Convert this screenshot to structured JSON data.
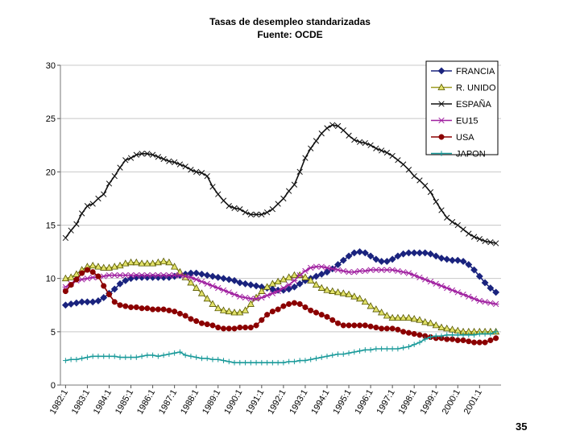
{
  "chart_data": {
    "type": "line",
    "title": "Tasas de desempleo standarizadas",
    "subtitle": "Fuente: OCDE",
    "xlabel": "",
    "ylabel": "",
    "ylim": [
      0,
      30
    ],
    "yticks": [
      0,
      5,
      10,
      15,
      20,
      25,
      30
    ],
    "grid": "horizontal",
    "legend_position": "top-right",
    "x_tick_labels": [
      "1982:1",
      "1983:1",
      "1984:1",
      "1985:1",
      "1986:1",
      "1987:1",
      "1988:1",
      "1989:1",
      "1990:1",
      "1991:1",
      "1992:1",
      "1993:1",
      "1994:1",
      "1995:1",
      "1996:1",
      "1997:1",
      "1998:1",
      "1999:1",
      "2000:1",
      "2001:1"
    ],
    "x_note": "Quarterly observations from 1982:1 to 2001:4 (80 points); values listed per quarter.",
    "series": [
      {
        "name": "FRANCIA",
        "color": "#1a237e",
        "marker": "diamond",
        "values": [
          7.5,
          7.6,
          7.7,
          7.8,
          7.8,
          7.8,
          7.9,
          8.2,
          8.6,
          9.0,
          9.5,
          9.8,
          10.0,
          10.1,
          10.1,
          10.1,
          10.1,
          10.1,
          10.1,
          10.1,
          10.2,
          10.3,
          10.4,
          10.5,
          10.5,
          10.4,
          10.3,
          10.2,
          10.1,
          10.0,
          9.9,
          9.8,
          9.6,
          9.5,
          9.4,
          9.3,
          9.2,
          9.1,
          9.0,
          8.9,
          8.9,
          9.0,
          9.2,
          9.5,
          9.8,
          10.0,
          10.2,
          10.4,
          10.6,
          10.9,
          11.3,
          11.7,
          12.1,
          12.4,
          12.5,
          12.4,
          12.1,
          11.8,
          11.6,
          11.6,
          11.8,
          12.1,
          12.3,
          12.4,
          12.4,
          12.4,
          12.4,
          12.3,
          12.1,
          11.9,
          11.8,
          11.7,
          11.7,
          11.6,
          11.3,
          10.8,
          10.2,
          9.6,
          9.1,
          8.7
        ]
      },
      {
        "name": "R. UNIDO",
        "color": "#9e9d24",
        "marker": "triangle",
        "values": [
          10.0,
          10.1,
          10.4,
          10.8,
          11.1,
          11.2,
          11.1,
          11.0,
          11.0,
          11.1,
          11.2,
          11.4,
          11.5,
          11.5,
          11.4,
          11.4,
          11.4,
          11.5,
          11.6,
          11.5,
          11.1,
          10.6,
          10.1,
          9.6,
          9.1,
          8.6,
          8.1,
          7.6,
          7.2,
          7.0,
          6.9,
          6.8,
          6.8,
          7.0,
          7.6,
          8.2,
          8.8,
          9.2,
          9.5,
          9.7,
          9.9,
          10.1,
          10.3,
          10.3,
          10.1,
          9.8,
          9.4,
          9.1,
          8.9,
          8.8,
          8.7,
          8.6,
          8.5,
          8.3,
          8.1,
          7.8,
          7.4,
          7.1,
          6.8,
          6.5,
          6.3,
          6.3,
          6.3,
          6.3,
          6.2,
          6.1,
          5.9,
          5.8,
          5.6,
          5.4,
          5.3,
          5.2,
          5.1,
          5.0,
          5.0,
          5.0,
          5.0,
          5.0,
          5.0,
          5.0
        ]
      },
      {
        "name": "ESPAÑA",
        "color": "#111111",
        "marker": "x",
        "values": [
          13.8,
          14.5,
          15.1,
          16.1,
          16.8,
          17.0,
          17.5,
          17.9,
          18.9,
          19.6,
          20.4,
          21.1,
          21.3,
          21.6,
          21.7,
          21.7,
          21.6,
          21.4,
          21.2,
          21.0,
          20.9,
          20.7,
          20.5,
          20.2,
          20.0,
          19.9,
          19.6,
          18.6,
          17.9,
          17.3,
          16.8,
          16.6,
          16.5,
          16.2,
          16.0,
          16.0,
          16.0,
          16.2,
          16.5,
          17.0,
          17.5,
          18.2,
          18.8,
          20.0,
          21.3,
          22.2,
          22.9,
          23.6,
          24.1,
          24.4,
          24.3,
          23.9,
          23.4,
          23.0,
          22.8,
          22.7,
          22.5,
          22.2,
          22.0,
          21.8,
          21.5,
          21.1,
          20.7,
          20.2,
          19.6,
          19.2,
          18.7,
          18.1,
          17.2,
          16.4,
          15.7,
          15.3,
          15.0,
          14.6,
          14.2,
          13.9,
          13.7,
          13.5,
          13.4,
          13.3
        ]
      },
      {
        "name": "EU15",
        "color": "#a020a0",
        "marker": "star",
        "values": [
          9.2,
          9.5,
          9.8,
          9.9,
          10.0,
          10.1,
          10.1,
          10.2,
          10.3,
          10.3,
          10.3,
          10.3,
          10.3,
          10.3,
          10.3,
          10.3,
          10.3,
          10.3,
          10.3,
          10.3,
          10.3,
          10.3,
          10.2,
          10.1,
          9.9,
          9.7,
          9.5,
          9.3,
          9.1,
          8.9,
          8.7,
          8.5,
          8.3,
          8.2,
          8.1,
          8.1,
          8.2,
          8.4,
          8.6,
          8.8,
          9.1,
          9.4,
          9.8,
          10.3,
          10.7,
          11.0,
          11.1,
          11.1,
          11.0,
          10.9,
          10.8,
          10.7,
          10.6,
          10.6,
          10.7,
          10.7,
          10.8,
          10.8,
          10.8,
          10.8,
          10.8,
          10.7,
          10.6,
          10.5,
          10.3,
          10.1,
          9.9,
          9.7,
          9.5,
          9.3,
          9.1,
          8.9,
          8.7,
          8.5,
          8.3,
          8.1,
          7.9,
          7.8,
          7.7,
          7.6
        ]
      },
      {
        "name": "USA",
        "color": "#8b0000",
        "marker": "circle",
        "values": [
          8.8,
          9.4,
          9.9,
          10.5,
          10.8,
          10.6,
          10.2,
          9.3,
          8.5,
          7.8,
          7.5,
          7.4,
          7.3,
          7.3,
          7.2,
          7.2,
          7.1,
          7.1,
          7.1,
          7.0,
          6.9,
          6.7,
          6.5,
          6.2,
          6.0,
          5.8,
          5.7,
          5.6,
          5.4,
          5.3,
          5.3,
          5.3,
          5.4,
          5.4,
          5.4,
          5.6,
          6.1,
          6.6,
          6.9,
          7.1,
          7.4,
          7.6,
          7.7,
          7.6,
          7.3,
          7.0,
          6.8,
          6.6,
          6.4,
          6.1,
          5.8,
          5.6,
          5.6,
          5.6,
          5.6,
          5.6,
          5.5,
          5.4,
          5.3,
          5.3,
          5.3,
          5.2,
          5.0,
          4.9,
          4.8,
          4.7,
          4.6,
          4.5,
          4.4,
          4.4,
          4.3,
          4.3,
          4.2,
          4.2,
          4.1,
          4.0,
          4.0,
          4.0,
          4.2,
          4.4
        ]
      },
      {
        "name": "JAPON",
        "color": "#1a9a9a",
        "marker": "plus",
        "values": [
          2.3,
          2.4,
          2.4,
          2.5,
          2.6,
          2.7,
          2.7,
          2.7,
          2.7,
          2.7,
          2.6,
          2.6,
          2.6,
          2.6,
          2.7,
          2.8,
          2.8,
          2.7,
          2.8,
          2.9,
          3.0,
          3.1,
          2.8,
          2.7,
          2.6,
          2.5,
          2.5,
          2.4,
          2.4,
          2.3,
          2.2,
          2.1,
          2.1,
          2.1,
          2.1,
          2.1,
          2.1,
          2.1,
          2.1,
          2.1,
          2.1,
          2.2,
          2.2,
          2.3,
          2.3,
          2.4,
          2.5,
          2.6,
          2.7,
          2.8,
          2.9,
          2.9,
          3.0,
          3.1,
          3.2,
          3.3,
          3.3,
          3.4,
          3.4,
          3.4,
          3.4,
          3.4,
          3.5,
          3.6,
          3.8,
          4.0,
          4.3,
          4.5,
          4.6,
          4.6,
          4.7,
          4.7,
          4.7,
          4.7,
          4.7,
          4.7,
          4.8,
          4.8,
          4.8,
          5.0
        ]
      }
    ]
  },
  "page": {
    "number": "35"
  }
}
